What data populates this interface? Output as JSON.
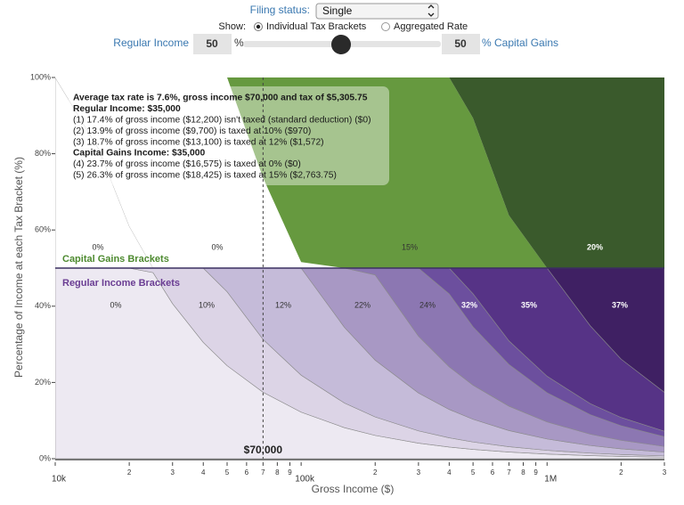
{
  "controls": {
    "filing_label": "Filing status:",
    "filing_value": "Single",
    "show_label": "Show:",
    "options": [
      "Individual Tax Brackets",
      "Aggregated Rate"
    ],
    "left_label": "Regular Income",
    "left_value": 50,
    "left_unit": "%",
    "right_value": 50,
    "right_label": "% Capital Gains"
  },
  "chart_data": {
    "type": "stacked-area",
    "y_label": "Percentage of Income at each Tax Bracket (%)",
    "x_label": "Gross Income ($)",
    "x_scale": "log",
    "xlim": [
      10000,
      3000000
    ],
    "ylim": [
      0,
      100
    ],
    "xticks": [
      {
        "value": 10000,
        "label": "10k"
      },
      {
        "value": 20000,
        "label": "2"
      },
      {
        "value": 30000,
        "label": "3"
      },
      {
        "value": 40000,
        "label": "4"
      },
      {
        "value": 50000,
        "label": "5"
      },
      {
        "value": 60000,
        "label": "6"
      },
      {
        "value": 70000,
        "label": "7"
      },
      {
        "value": 80000,
        "label": "8"
      },
      {
        "value": 90000,
        "label": "9"
      },
      {
        "value": 100000,
        "label": "100k"
      },
      {
        "value": 200000,
        "label": "2"
      },
      {
        "value": 300000,
        "label": "3"
      },
      {
        "value": 400000,
        "label": "4"
      },
      {
        "value": 500000,
        "label": "5"
      },
      {
        "value": 600000,
        "label": "6"
      },
      {
        "value": 700000,
        "label": "7"
      },
      {
        "value": 800000,
        "label": "8"
      },
      {
        "value": 900000,
        "label": "9"
      },
      {
        "value": 1000000,
        "label": "1M"
      },
      {
        "value": 2000000,
        "label": "2"
      },
      {
        "value": 3000000,
        "label": "3"
      }
    ],
    "yticks": [
      {
        "value": 0,
        "label": "0%"
      },
      {
        "value": 20,
        "label": "20%"
      },
      {
        "value": 40,
        "label": "40%"
      },
      {
        "value": 60,
        "label": "60%"
      },
      {
        "value": 80,
        "label": "80%"
      },
      {
        "value": 100,
        "label": "100%"
      }
    ],
    "group_labels": [
      "Capital Gains Brackets",
      "Regular Income Brackets"
    ],
    "x": [
      10000,
      15000,
      20000,
      25000,
      30000,
      40000,
      50000,
      70000,
      100000,
      150000,
      200000,
      300000,
      400000,
      500000,
      700000,
      1000000,
      1500000,
      2000000,
      3000000
    ],
    "series": [
      {
        "name": "0%",
        "color": "#ede9f2",
        "values": [
          50,
          50,
          50,
          48.8,
          40.67,
          30.5,
          24.4,
          17.43,
          12.2,
          8.133,
          6.1,
          4.067,
          3.05,
          2.44,
          1.743,
          1.22,
          0.813,
          0.61,
          0.407
        ]
      },
      {
        "name": "10%",
        "color": "#dcd4e6",
        "values": [
          0,
          0,
          0,
          1.2,
          9.33,
          19.5,
          19.4,
          13.86,
          9.7,
          6.467,
          4.85,
          3.233,
          2.425,
          1.94,
          1.386,
          0.97,
          0.647,
          0.485,
          0.323
        ]
      },
      {
        "name": "12%",
        "color": "#c5bbd9",
        "values": [
          0,
          0,
          0,
          0,
          0,
          0,
          6.2,
          18.71,
          28.1,
          19.85,
          14.888,
          9.925,
          7.444,
          5.955,
          4.254,
          2.978,
          1.985,
          1.489,
          0.993
        ]
      },
      {
        "name": "22%",
        "color": "#a898c4",
        "values": [
          0,
          0,
          0,
          0,
          0,
          0,
          0,
          0,
          0,
          15.55,
          22.363,
          14.908,
          11.181,
          8.945,
          6.389,
          4.473,
          2.982,
          2.236,
          1.491
        ]
      },
      {
        "name": "24%",
        "color": "#8c77b2",
        "values": [
          0,
          0,
          0,
          0,
          0,
          0,
          0,
          0,
          0,
          0,
          1.8,
          17.867,
          19.131,
          15.305,
          10.932,
          7.653,
          5.102,
          3.826,
          2.551
        ]
      },
      {
        "name": "32%",
        "color": "#6c4f9e",
        "values": [
          0,
          0,
          0,
          0,
          0,
          0,
          0,
          0,
          0,
          0,
          0,
          0,
          6.769,
          8.675,
          6.196,
          4.338,
          2.892,
          2.169,
          1.446
        ]
      },
      {
        "name": "35%",
        "color": "#563386",
        "values": [
          0,
          0,
          0,
          0,
          0,
          0,
          0,
          0,
          0,
          0,
          0,
          0,
          0,
          6.74,
          19.1,
          28.37,
          20.413,
          15.31,
          10.207
        ]
      },
      {
        "name": "37%",
        "color": "#3f2063",
        "values": [
          0,
          0,
          0,
          0,
          0,
          0,
          0,
          0,
          0,
          0,
          0,
          0,
          0,
          0,
          0,
          0,
          15.167,
          23.875,
          32.583
        ]
      },
      {
        "name": "0%",
        "color": "#ffffff",
        "values": [
          50,
          31.33,
          11,
          0,
          0,
          0,
          0,
          0,
          0,
          0,
          0,
          0,
          0,
          0,
          0,
          0,
          0,
          0,
          0
        ]
      },
      {
        "name": "0%",
        "color": "#ffffff",
        "values": [
          0,
          18.67,
          39,
          50,
          50,
          50,
          50,
          23.68,
          1.575,
          0,
          0,
          0,
          0,
          0,
          0,
          0,
          0,
          0,
          0
        ]
      },
      {
        "name": "15%",
        "color": "#66993f",
        "values": [
          0,
          0,
          0,
          0,
          0,
          0,
          0,
          26.32,
          48.425,
          50,
          50,
          50,
          50,
          39.35,
          13.821,
          0,
          0,
          0,
          0
        ]
      },
      {
        "name": "20%",
        "color": "#3a5a2c",
        "values": [
          0,
          0,
          0,
          0,
          0,
          0,
          0,
          0,
          0,
          0,
          0,
          0,
          0,
          10.65,
          36.179,
          50,
          50,
          50,
          50
        ]
      }
    ],
    "marker": {
      "x": 70000,
      "label": "$70,000"
    },
    "annotation": [
      {
        "text": "Average tax rate is 7.6%, gross income $70,000 and tax of $5,305.75",
        "bold": true
      },
      {
        "text": "Regular Income: $35,000",
        "bold": true
      },
      {
        "text": "(1) 17.4% of gross income ($12,200) isn't taxed (standard deduction) ($0)",
        "bold": false
      },
      {
        "text": "(2) 13.9% of gross income ($9,700) is taxed at 10% ($970)",
        "bold": false
      },
      {
        "text": "(3) 18.7% of gross income ($13,100) is taxed at 12% ($1,572)",
        "bold": false
      },
      {
        "text": "Capital Gains Income: $35,000",
        "bold": true
      },
      {
        "text": "(4) 23.7% of gross income ($16,575) is taxed at 0% ($0)",
        "bold": false
      },
      {
        "text": "(5) 26.3% of gross income ($18,425) is taxed at 15% ($2,763.75)",
        "bold": false
      }
    ]
  }
}
